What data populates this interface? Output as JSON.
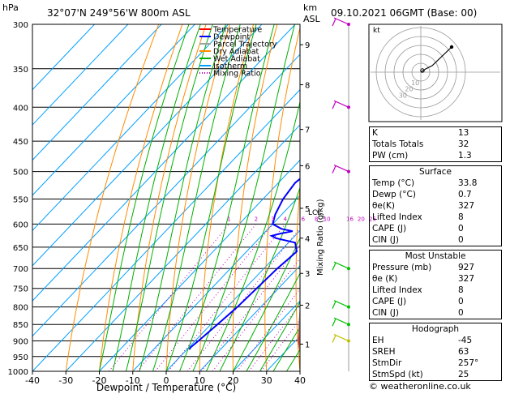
{
  "header": {
    "hpa_label": "hPa",
    "location": "32°07'N  249°56'W  800m  ASL",
    "km_label": "km",
    "asl_label": "ASL",
    "datetime": "09.10.2021  06GMT  (Base: 00)"
  },
  "legend": {
    "items": [
      {
        "label": "Temperature",
        "color": "#ff0000",
        "style": "solid"
      },
      {
        "label": "Dewpoint",
        "color": "#0000ff",
        "style": "solid"
      },
      {
        "label": "Parcel Trajectory",
        "color": "#a0a0a0",
        "style": "solid"
      },
      {
        "label": "Dry Adiabat",
        "color": "#ff8c00",
        "style": "solid"
      },
      {
        "label": "Wet Adiabat",
        "color": "#00b000",
        "style": "solid"
      },
      {
        "label": "Isotherm",
        "color": "#00a0ff",
        "style": "solid"
      },
      {
        "label": "Mixing Ratio",
        "color": "#c000c0",
        "style": "dotted"
      }
    ]
  },
  "chart_data": {
    "type": "line",
    "title": "",
    "xlabel": "Dewpoint / Temperature (°C)",
    "ylabel": "hPa",
    "xlim": [
      -40,
      40
    ],
    "ylim": [
      1000,
      300
    ],
    "x_ticks": [
      -40,
      -30,
      -20,
      -10,
      0,
      10,
      20,
      30,
      40
    ],
    "pressure_levels": [
      300,
      350,
      400,
      450,
      500,
      550,
      600,
      650,
      700,
      750,
      800,
      850,
      900,
      950,
      1000
    ],
    "km_ticks": [
      {
        "km": 1,
        "p": 910
      },
      {
        "km": 2,
        "p": 795
      },
      {
        "km": 3,
        "p": 712
      },
      {
        "km": 4,
        "p": 630
      },
      {
        "km": 5,
        "p": 568
      },
      {
        "km": 6,
        "p": 490
      },
      {
        "km": 7,
        "p": 432
      },
      {
        "km": 8,
        "p": 370
      },
      {
        "km": 9,
        "p": 322
      }
    ],
    "lcl_label": "LCL",
    "lcl_p": 580,
    "mixing_ratio_axis_label": "Mixing Ratio (g/kg)",
    "mixing_ratio_labels": [
      "1",
      "2",
      "3",
      "4",
      "6",
      "8",
      "10",
      "16",
      "20",
      "25"
    ],
    "mixing_ratio_values": [
      1,
      2,
      3,
      4,
      6,
      8,
      10,
      16,
      20,
      25
    ],
    "series": [
      {
        "name": "Temperature",
        "color": "#ff0000",
        "points": [
          [
            927,
            33.8
          ],
          [
            900,
            31
          ],
          [
            850,
            26.5
          ],
          [
            800,
            22
          ],
          [
            750,
            18
          ],
          [
            700,
            14
          ],
          [
            650,
            10
          ],
          [
            600,
            7
          ],
          [
            550,
            4
          ],
          [
            500,
            -2
          ],
          [
            450,
            -9
          ],
          [
            400,
            -16
          ],
          [
            350,
            -24
          ],
          [
            300,
            -33
          ]
        ]
      },
      {
        "name": "Dewpoint",
        "color": "#0000ff",
        "points": [
          [
            927,
            0.7
          ],
          [
            920,
            0.5
          ],
          [
            900,
            1
          ],
          [
            850,
            2
          ],
          [
            800,
            3
          ],
          [
            750,
            3.5
          ],
          [
            700,
            4
          ],
          [
            660,
            5
          ],
          [
            640,
            2
          ],
          [
            630,
            -5
          ],
          [
            625,
            -7
          ],
          [
            620,
            -5
          ],
          [
            615,
            -2
          ],
          [
            610,
            -6
          ],
          [
            600,
            -10
          ],
          [
            580,
            -12
          ],
          [
            550,
            -14
          ],
          [
            520,
            -15
          ],
          [
            500,
            -14
          ],
          [
            480,
            -13
          ],
          [
            460,
            -14
          ],
          [
            440,
            -18
          ],
          [
            420,
            -20
          ],
          [
            410,
            -18
          ],
          [
            400,
            -19
          ],
          [
            380,
            -17
          ],
          [
            350,
            -19
          ],
          [
            330,
            -22
          ],
          [
            310,
            -21
          ],
          [
            300,
            -20
          ]
        ]
      },
      {
        "name": "Parcel Trajectory",
        "color": "#a0a0a0",
        "points": [
          [
            927,
            33.8
          ],
          [
            850,
            26.5
          ],
          [
            750,
            17
          ],
          [
            650,
            8
          ],
          [
            600,
            4
          ],
          [
            550,
            0
          ],
          [
            500,
            -5
          ],
          [
            450,
            -10
          ],
          [
            400,
            -16
          ],
          [
            350,
            -22
          ],
          [
            300,
            -29
          ]
        ]
      }
    ]
  },
  "hodograph": {
    "label": "kt",
    "ring_labels": [
      "10",
      "20",
      "30"
    ]
  },
  "indices": {
    "k_label": "K",
    "k_value": "13",
    "tt_label": "Totals Totals",
    "tt_value": "32",
    "pw_label": "PW (cm)",
    "pw_value": "1.3"
  },
  "surface": {
    "title": "Surface",
    "rows": [
      {
        "label": "Temp (°C)",
        "value": "33.8"
      },
      {
        "label": "Dewp (°C)",
        "value": "0.7"
      },
      {
        "label": "θe(K)",
        "value": "327"
      },
      {
        "label": "Lifted Index",
        "value": "8"
      },
      {
        "label": "CAPE (J)",
        "value": "0"
      },
      {
        "label": "CIN (J)",
        "value": "0"
      }
    ]
  },
  "most_unstable": {
    "title": "Most Unstable",
    "rows": [
      {
        "label": "Pressure (mb)",
        "value": "927"
      },
      {
        "label": "θe (K)",
        "value": "327"
      },
      {
        "label": "Lifted Index",
        "value": "8"
      },
      {
        "label": "CAPE (J)",
        "value": "0"
      },
      {
        "label": "CIN (J)",
        "value": "0"
      }
    ]
  },
  "hodograph_table": {
    "title": "Hodograph",
    "rows": [
      {
        "label": "EH",
        "value": "-45"
      },
      {
        "label": "SREH",
        "value": "63"
      },
      {
        "label": "StmDir",
        "value": "257°"
      },
      {
        "label": "StmSpd (kt)",
        "value": "25"
      }
    ]
  },
  "copyright": "© weatheronline.co.uk",
  "colors": {
    "temperature": "#ff0000",
    "dewpoint": "#0000ff",
    "parcel": "#a0a0a0",
    "dry_adiabat": "#ff8c00",
    "wet_adiabat": "#00b000",
    "isotherm": "#00a0ff",
    "mixing_ratio": "#c000c0",
    "wind_barb_upper": "#c000c0",
    "wind_barb_mid": "#00c000",
    "wind_barb_low": "#c0c000"
  }
}
